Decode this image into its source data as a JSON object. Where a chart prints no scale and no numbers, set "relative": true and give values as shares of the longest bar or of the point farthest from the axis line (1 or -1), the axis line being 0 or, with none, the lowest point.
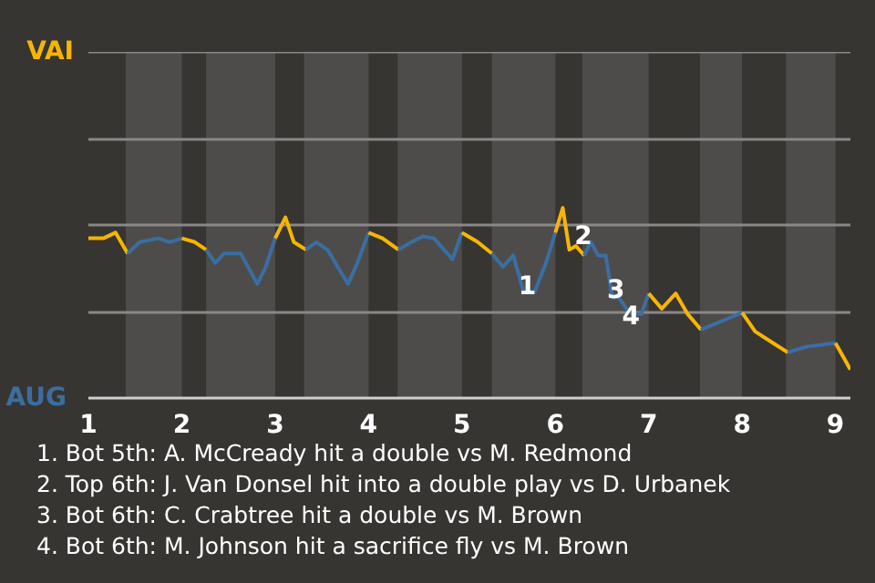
{
  "chart_data": {
    "type": "line",
    "relative": true,
    "series": [
      {
        "color": "#f7b500",
        "x": [
          1.0,
          1.16,
          1.29,
          1.42
        ],
        "values": [
          0.84,
          0.84,
          0.87,
          0.76
        ]
      },
      {
        "color": "#3a6ea0",
        "x": [
          1.42,
          1.55,
          1.75,
          1.87,
          2.0
        ],
        "values": [
          0.76,
          0.82,
          0.84,
          0.82,
          0.84
        ]
      },
      {
        "color": "#f7b501",
        "x": [
          2.0,
          2.14,
          2.26
        ],
        "values": [
          0.84,
          0.82,
          0.78
        ]
      },
      {
        "color": "#3a6ea1",
        "x": [
          2.26,
          2.36,
          2.45,
          2.63,
          2.71,
          2.81,
          2.9,
          3.0
        ],
        "values": [
          0.78,
          0.71,
          0.76,
          0.76,
          0.69,
          0.6,
          0.69,
          0.84
        ]
      },
      {
        "color": "#f7b502",
        "x": [
          3.0,
          3.11,
          3.2,
          3.33
        ],
        "values": [
          0.84,
          0.95,
          0.82,
          0.78
        ]
      },
      {
        "color": "#3a6ea2",
        "x": [
          3.33,
          3.44,
          3.56,
          3.67,
          3.78,
          3.88,
          4.0
        ],
        "values": [
          0.78,
          0.82,
          0.78,
          0.69,
          0.6,
          0.71,
          0.87
        ]
      },
      {
        "color": "#f7b503",
        "x": [
          4.0,
          4.15,
          4.32
        ],
        "values": [
          0.87,
          0.84,
          0.78
        ]
      },
      {
        "color": "#3a6ea3",
        "x": [
          4.32,
          4.46,
          4.58,
          4.7,
          4.9,
          5.0
        ],
        "values": [
          0.78,
          0.82,
          0.85,
          0.84,
          0.73,
          0.87
        ]
      },
      {
        "color": "#f7b504",
        "x": [
          5.0,
          5.17,
          5.32
        ],
        "values": [
          0.87,
          0.82,
          0.76
        ]
      },
      {
        "color": "#3a6ea4",
        "x": [
          5.32,
          5.44,
          5.55,
          5.66,
          5.78,
          5.9,
          6.0
        ],
        "values": [
          0.76,
          0.69,
          0.75,
          0.56,
          0.56,
          0.71,
          0.87
        ]
      },
      {
        "color": "#f7b505",
        "x": [
          6.0,
          6.08,
          6.15,
          6.22,
          6.31
        ],
        "values": [
          0.87,
          1.0,
          0.78,
          0.8,
          0.75
        ]
      },
      {
        "color": "#3a6ea5",
        "x": [
          6.31,
          6.38,
          6.46,
          6.54,
          6.61,
          6.68,
          6.79,
          6.92,
          7.0
        ],
        "values": [
          0.75,
          0.82,
          0.75,
          0.75,
          0.53,
          0.53,
          0.45,
          0.44,
          0.55
        ]
      },
      {
        "color": "#f7b506",
        "x": [
          7.0,
          7.14,
          7.29,
          7.42,
          7.56
        ],
        "values": [
          0.55,
          0.47,
          0.55,
          0.44,
          0.36
        ]
      },
      {
        "color": "#3a6ea6",
        "x": [
          7.56,
          7.76,
          8.0
        ],
        "values": [
          0.36,
          0.4,
          0.45
        ]
      },
      {
        "color": "#f7b507",
        "x": [
          8.0,
          8.14,
          8.33,
          8.49
        ],
        "values": [
          0.45,
          0.35,
          0.29,
          0.24
        ]
      },
      {
        "color": "#3a6ea7",
        "x": [
          8.49,
          8.69,
          9.0
        ],
        "values": [
          0.24,
          0.27,
          0.29
        ]
      },
      {
        "color": "#f7b508",
        "x": [
          9.0,
          9.16
        ],
        "values": [
          0.29,
          0.15
        ]
      }
    ],
    "xlim": [
      1,
      9.16
    ],
    "xticks": [
      1,
      2,
      3,
      4,
      5,
      6,
      7,
      8,
      9
    ],
    "ylabel": "AUG",
    "ref_lines": [
      {
        "axis": "y",
        "value": 0.45,
        "color": "#8a8886"
      },
      {
        "axis": "y",
        "value": 0.91,
        "color": "#8a8886"
      },
      {
        "axis": "y",
        "value": 1.36,
        "color": "#8a8886"
      },
      {
        "axis": "y",
        "value": 1.82,
        "label": "VAI",
        "color": "#8a8886"
      }
    ],
    "bands": [
      {
        "axis": "x",
        "from": 1.4,
        "to": 2,
        "color": "#4e4c4a"
      },
      {
        "axis": "x",
        "from": 2.26,
        "to": 3,
        "color": "#4e4c4a"
      },
      {
        "axis": "x",
        "from": 3.31,
        "to": 4,
        "color": "#4e4c4a"
      },
      {
        "axis": "x",
        "from": 4.31,
        "to": 5,
        "color": "#4e4c4a"
      },
      {
        "axis": "x",
        "from": 5.32,
        "to": 6,
        "color": "#4e4c4a"
      },
      {
        "axis": "x",
        "from": 6.29,
        "to": 7,
        "color": "#4e4c4a"
      },
      {
        "axis": "x",
        "from": 7.55,
        "to": 8,
        "color": "#4e4c4a"
      },
      {
        "axis": "x",
        "from": 8.47,
        "to": 9,
        "color": "#4e4c4a"
      }
    ],
    "annotations": [
      {
        "text": "1",
        "x": 5.7,
        "y": 0.6
      },
      {
        "text": "2",
        "x": 6.3,
        "y": 0.86
      },
      {
        "text": "3",
        "x": 6.65,
        "y": 0.58
      },
      {
        "text": "4",
        "x": 6.81,
        "y": 0.44
      },
      "1. Bot 5th: A. McCready hit a double vs M. Redmond",
      "2. Top 6th: J. Van Donsel hit into a double play vs D. Urbanek",
      "3. Bot 6th: C. Crabtree hit a double vs M. Brown",
      "4. Bot 6th: M. Johnson hit a sacrifice fly vs M. Brown"
    ]
  }
}
